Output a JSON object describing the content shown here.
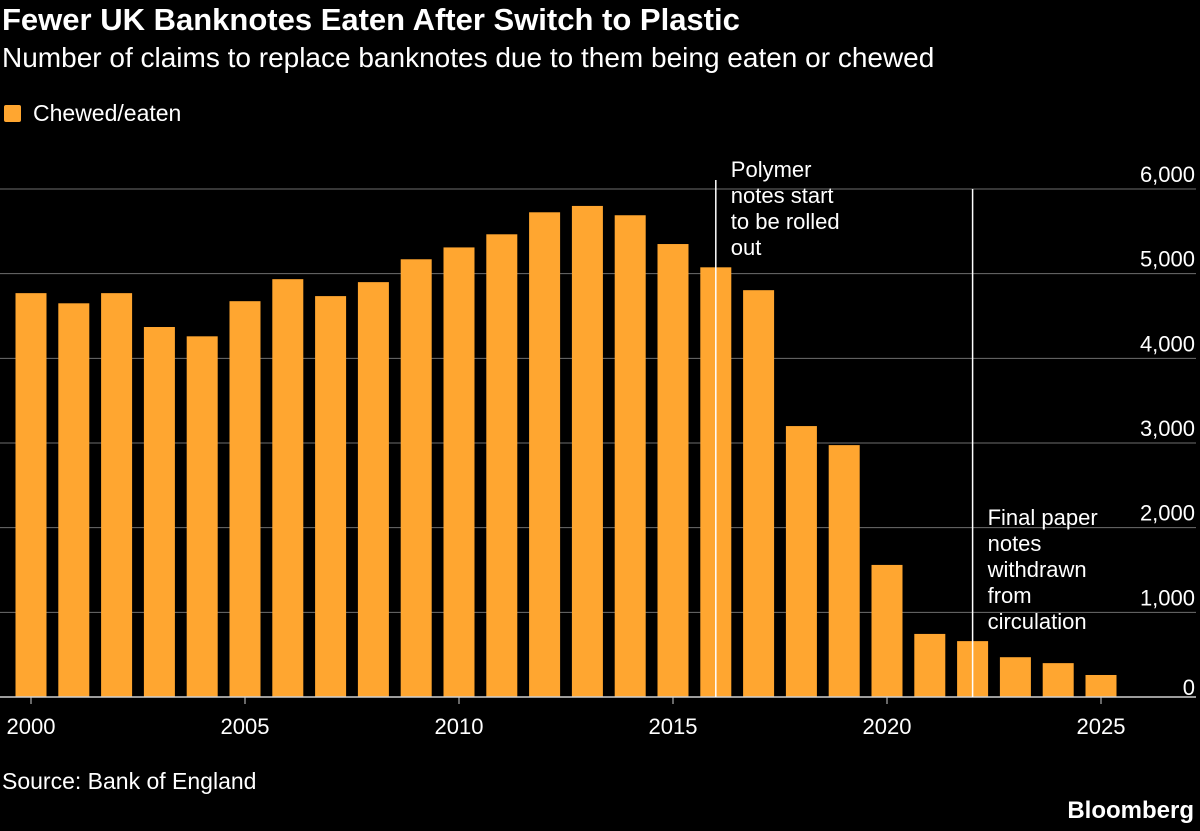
{
  "chart_data": {
    "type": "bar",
    "title": "Fewer UK Banknotes Eaten After Switch to Plastic",
    "subtitle": "Number of claims to replace banknotes due to them being eaten or chewed",
    "series": [
      {
        "name": "Chewed/eaten",
        "color": "#ffa630",
        "values": [
          4770,
          4650,
          4770,
          4370,
          4260,
          4675,
          4935,
          4735,
          4900,
          5170,
          5310,
          5465,
          5725,
          5800,
          5690,
          5350,
          5075,
          4805,
          3200,
          2975,
          1560,
          745,
          660,
          470,
          400,
          260
        ]
      }
    ],
    "categories": [
      2000,
      2001,
      2002,
      2003,
      2004,
      2005,
      2006,
      2007,
      2008,
      2009,
      2010,
      2011,
      2012,
      2013,
      2014,
      2015,
      2016,
      2017,
      2018,
      2019,
      2020,
      2021,
      2022,
      2023,
      2024,
      2025
    ],
    "xticks": [
      "2000",
      "2005",
      "2010",
      "2015",
      "2020",
      "2025"
    ],
    "yticks": [
      "0",
      "1,000",
      "2,000",
      "3,000",
      "4,000",
      "5,000",
      "6,000"
    ],
    "ylim": [
      0,
      6000
    ],
    "grid": true,
    "legend_position": "top-left",
    "y_axis_side": "right",
    "annotations": [
      {
        "year": 2016,
        "lines": [
          "Polymer",
          "notes start",
          "to be rolled",
          "out"
        ]
      },
      {
        "year": 2022,
        "lines": [
          "Final paper",
          "notes",
          "withdrawn",
          "from",
          "circulation"
        ]
      }
    ],
    "source": "Source: Bank of England",
    "brand": "Bloomberg"
  }
}
